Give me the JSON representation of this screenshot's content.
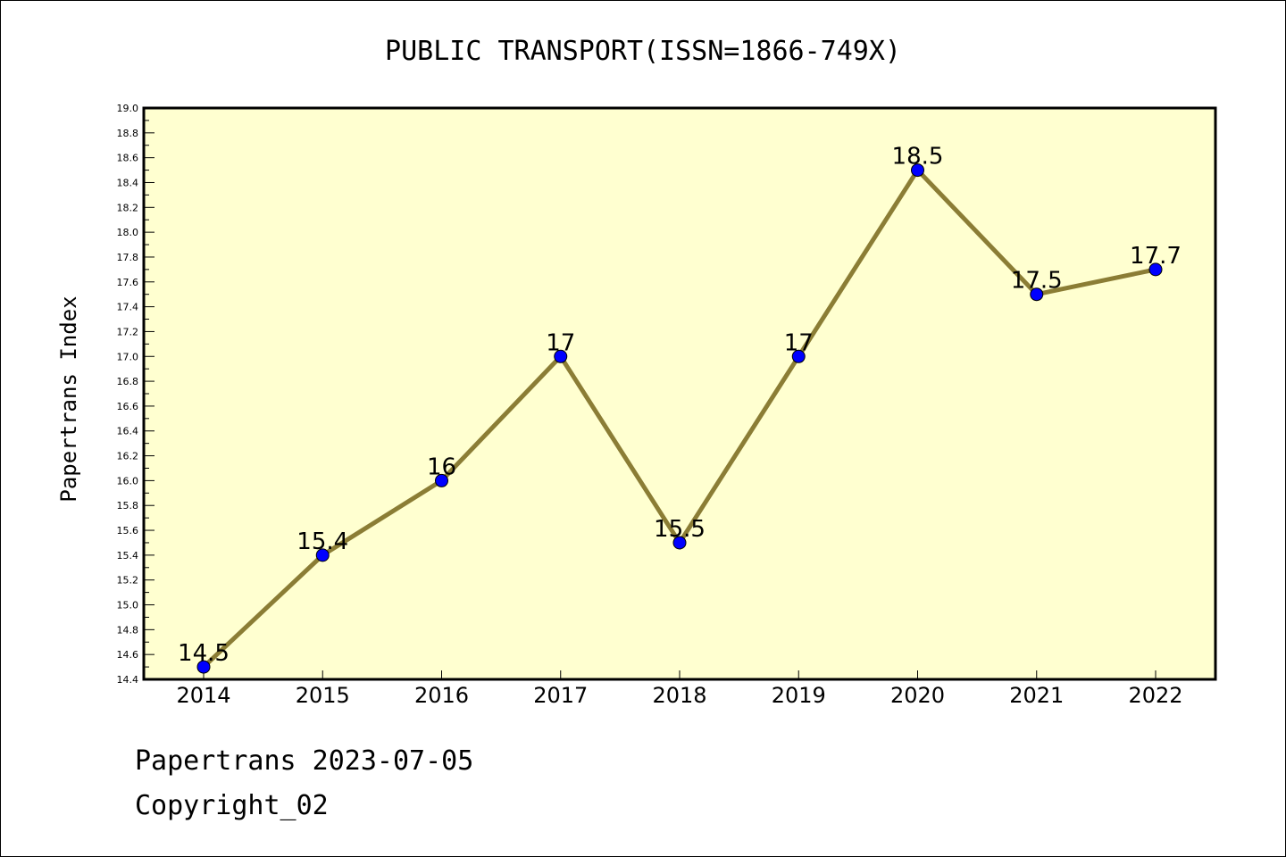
{
  "chart_data": {
    "type": "line",
    "title": "PUBLIC TRANSPORT(ISSN=1866-749X)",
    "xlabel": "",
    "ylabel": "Papertrans Index",
    "categories": [
      "2014",
      "2015",
      "2016",
      "2017",
      "2018",
      "2019",
      "2020",
      "2021",
      "2022"
    ],
    "series": [
      {
        "values": [
          14.5,
          15.4,
          16,
          17,
          15.5,
          17,
          18.5,
          17.5,
          17.7
        ],
        "labels": [
          "14.5",
          "15.4",
          "16",
          "17",
          "15.5",
          "17",
          "18.5",
          "17.5",
          "17.7"
        ]
      }
    ],
    "ylim": [
      14.4,
      19.0
    ],
    "yticks": [
      "14.4",
      "14.6",
      "14.8",
      "15.0",
      "15.2",
      "15.4",
      "15.6",
      "15.8",
      "16.0",
      "16.2",
      "16.4",
      "16.6",
      "16.8",
      "17.0",
      "17.2",
      "17.4",
      "17.6",
      "17.8",
      "18.0",
      "18.2",
      "18.4",
      "18.6",
      "18.8",
      "19.0"
    ],
    "grid": false,
    "colors": {
      "plot_background": "#ffffd0",
      "line": "#8b7d35",
      "marker": "#0000ff"
    }
  },
  "footer": {
    "line1": "Papertrans 2023-07-05",
    "line2": "Copyright_02"
  }
}
